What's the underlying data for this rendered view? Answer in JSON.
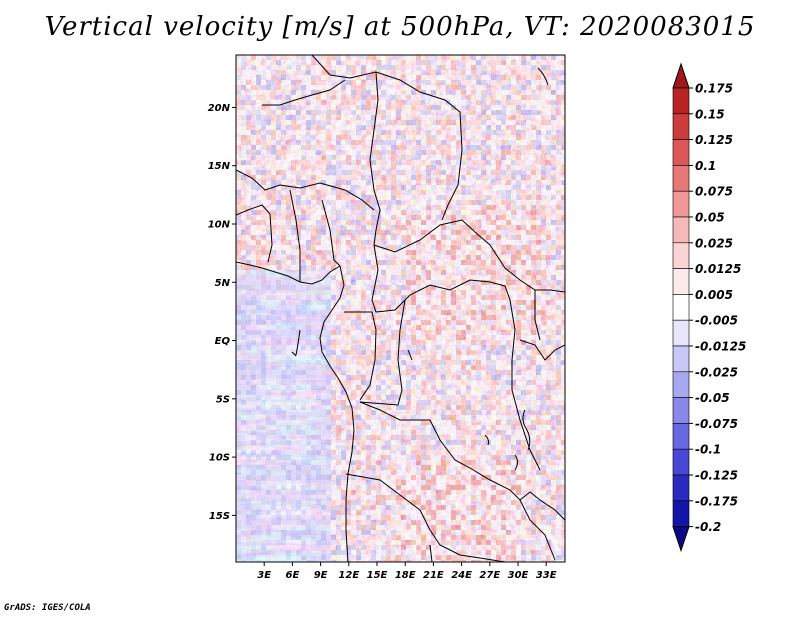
{
  "title": "Vertical velocity [m/s] at 500hPa, VT: 2020083015",
  "footer": "GrADS: IGES/COLA",
  "chart_data": {
    "type": "heatmap",
    "title": "Vertical velocity [m/s] at 500hPa, VT: 2020083015",
    "variable": "Vertical velocity",
    "units": "m/s",
    "level": "500hPa",
    "valid_time": "2020083015",
    "xlim": [
      0,
      35
    ],
    "ylim": [
      -19,
      24.5
    ],
    "x_ticks": [
      {
        "value": 3,
        "label": "3E"
      },
      {
        "value": 6,
        "label": "6E"
      },
      {
        "value": 9,
        "label": "9E"
      },
      {
        "value": 12,
        "label": "12E"
      },
      {
        "value": 15,
        "label": "15E"
      },
      {
        "value": 18,
        "label": "18E"
      },
      {
        "value": 21,
        "label": "21E"
      },
      {
        "value": 24,
        "label": "24E"
      },
      {
        "value": 27,
        "label": "27E"
      },
      {
        "value": 30,
        "label": "30E"
      },
      {
        "value": 33,
        "label": "33E"
      }
    ],
    "y_ticks": [
      {
        "value": 20,
        "label": "20N"
      },
      {
        "value": 15,
        "label": "15N"
      },
      {
        "value": 10,
        "label": "10N"
      },
      {
        "value": 5,
        "label": "5N"
      },
      {
        "value": 0,
        "label": "EQ"
      },
      {
        "value": -5,
        "label": "5S"
      },
      {
        "value": -10,
        "label": "10S"
      },
      {
        "value": -15,
        "label": "15S"
      }
    ],
    "colorbar": {
      "labels": [
        "0.175",
        "0.15",
        "0.125",
        "0.1",
        "0.075",
        "0.05",
        "0.025",
        "0.0125",
        "0.005",
        "-0.005",
        "-0.0125",
        "-0.025",
        "-0.05",
        "-0.075",
        "-0.1",
        "-0.125",
        "-0.175",
        "-0.2"
      ],
      "colors": [
        "#a01818",
        "#b82424",
        "#cc3c3c",
        "#dc5858",
        "#e87878",
        "#f09898",
        "#f6b8b8",
        "#fad4d4",
        "#fdeaea",
        "#ffffff",
        "#e6e6fc",
        "#c8c8f6",
        "#a8a8f0",
        "#8888ea",
        "#6868e0",
        "#4848d4",
        "#2a2ac0",
        "#1414a8",
        "#0a0a88"
      ]
    }
  }
}
